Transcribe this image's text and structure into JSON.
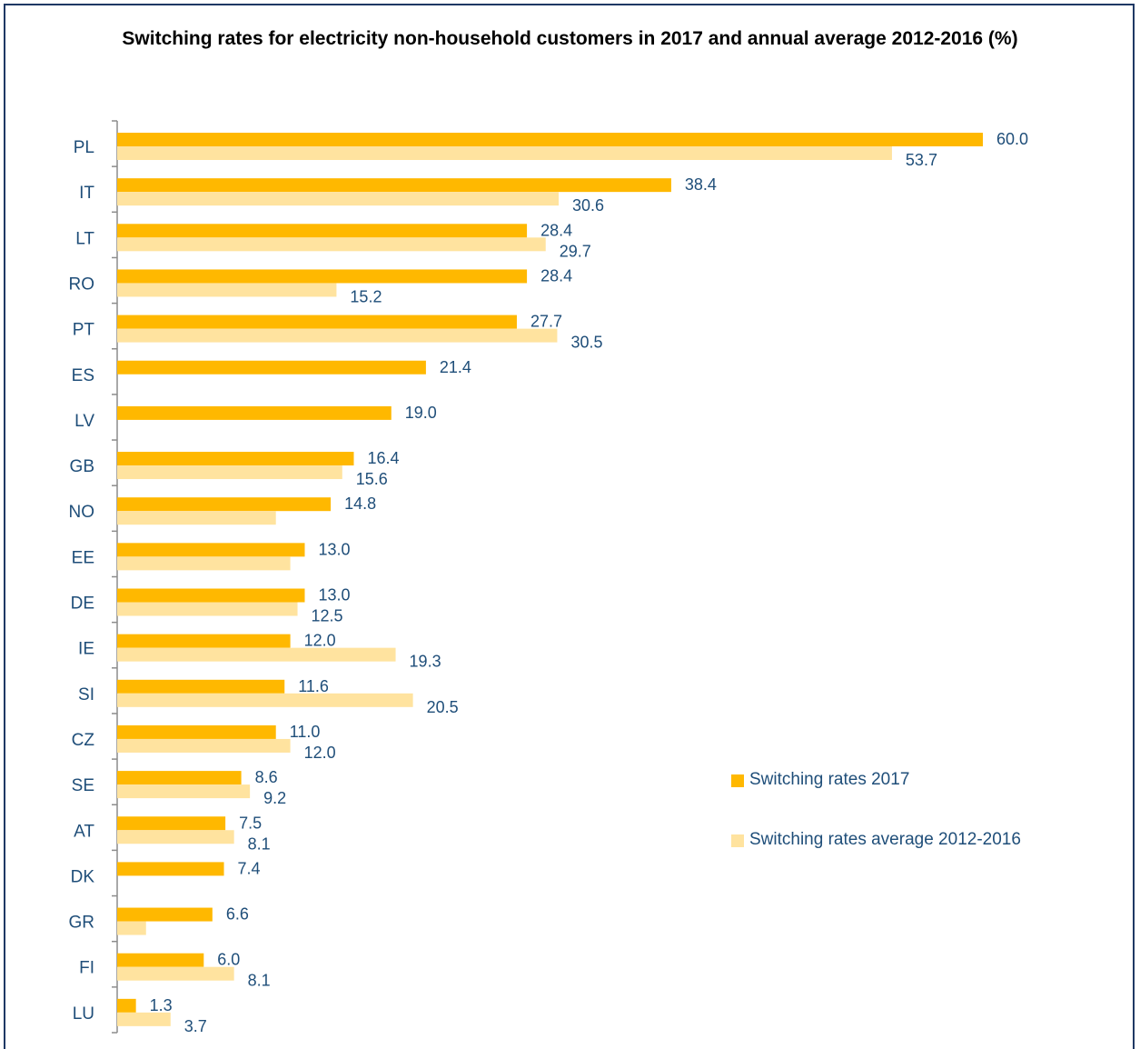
{
  "colors": {
    "series_2017": "#ffb800",
    "series_avg": "#ffe39f",
    "text": "#1f4e79",
    "axis": "#8c8c8c",
    "frame": "#1f3864"
  },
  "chart_data": {
    "type": "bar",
    "orientation": "horizontal",
    "title": "Switching rates for electricity non-household customers in 2017 and annual average 2012-2016 (%)",
    "categories": [
      "PL",
      "IT",
      "LT",
      "RO",
      "PT",
      "ES",
      "LV",
      "GB",
      "NO",
      "EE",
      "DE",
      "IE",
      "SI",
      "CZ",
      "SE",
      "AT",
      "DK",
      "GR",
      "FI",
      "LU"
    ],
    "series": [
      {
        "name": "Switching rates 2017",
        "values": [
          60.0,
          38.4,
          28.4,
          28.4,
          27.7,
          21.4,
          19.0,
          16.4,
          14.8,
          13.0,
          13.0,
          12.0,
          11.6,
          11.0,
          8.6,
          7.5,
          7.4,
          6.6,
          6.0,
          1.3
        ]
      },
      {
        "name": "Switching rates average 2012-2016",
        "values": [
          53.7,
          30.6,
          29.7,
          15.2,
          30.5,
          null,
          null,
          15.6,
          11.0,
          12.0,
          12.5,
          19.3,
          20.5,
          12.0,
          9.2,
          8.1,
          null,
          2.0,
          8.1,
          3.7
        ]
      }
    ],
    "labels_2017": [
      "60.0",
      "38.4",
      "28.4",
      "28.4",
      "27.7",
      "21.4",
      "19.0",
      "16.4",
      "14.8",
      "13.0",
      "13.0",
      "12.0",
      "11.6",
      "11.0",
      "8.6",
      "7.5",
      "7.4",
      "6.6",
      "6.0",
      "1.3"
    ],
    "labels_avg": [
      "53.7",
      "30.6",
      "29.7",
      "15.2",
      "30.5",
      "",
      "",
      "15.6",
      "",
      "",
      "12.5",
      "19.3",
      "20.5",
      "12.0",
      "9.2",
      "8.1",
      "",
      "",
      "8.1",
      "3.7"
    ],
    "xlim": [
      0,
      60
    ],
    "grid": false,
    "legend": "right"
  }
}
